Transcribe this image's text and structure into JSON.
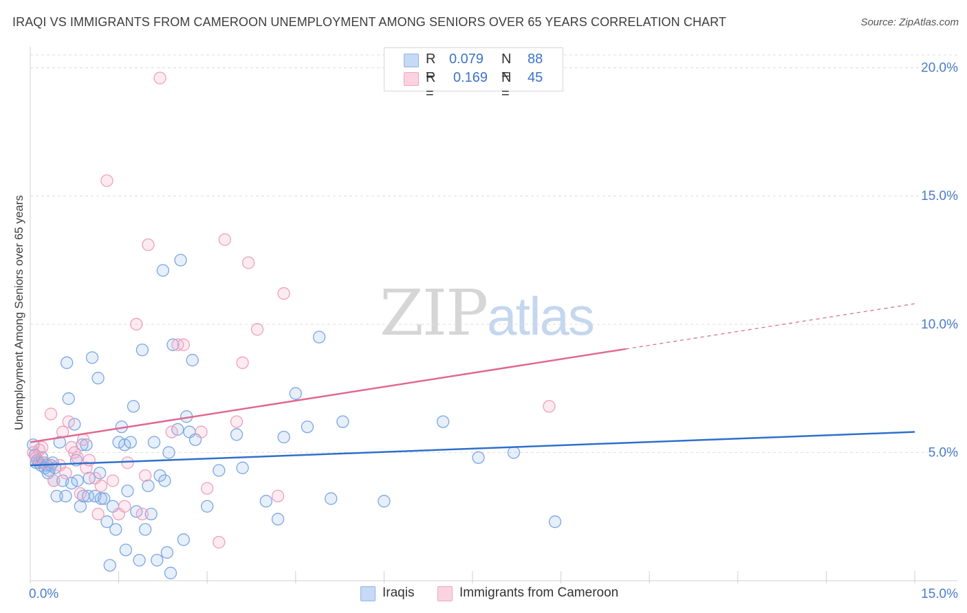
{
  "header": {
    "title": "IRAQI VS IMMIGRANTS FROM CAMEROON UNEMPLOYMENT AMONG SENIORS OVER 65 YEARS CORRELATION CHART",
    "source": "Source: ZipAtlas.com"
  },
  "watermark": {
    "zip": "ZIP",
    "atlas": "atlas"
  },
  "legend": {
    "rows": [
      {
        "r_label": "R =",
        "r_value": "0.079",
        "n_label": "N =",
        "n_value": "88"
      },
      {
        "r_label": "R =",
        "r_value": "0.169",
        "n_label": "N =",
        "n_value": "45"
      }
    ]
  },
  "colors": {
    "iraqis": "#8fb4e8",
    "iraqis_line": "#2e6fcc",
    "cameroon": "#f2a3be",
    "cameroon_line": "#e06890",
    "tick_label": "#4a7cc9",
    "grid": "#dcdcdc"
  },
  "chart_data": {
    "type": "scatter",
    "title": "IRAQI VS IMMIGRANTS FROM CAMEROON UNEMPLOYMENT AMONG SENIORS OVER 65 YEARS CORRELATION CHART",
    "xlabel": "",
    "ylabel": "Unemployment Among Seniors over 65 years",
    "xlim": [
      0,
      15
    ],
    "ylim": [
      0,
      20.5
    ],
    "x_tick_labels": [
      "0.0%",
      "15.0%"
    ],
    "y_ticks": [
      5,
      10,
      15,
      20
    ],
    "y_tick_labels": [
      "5.0%",
      "10.0%",
      "15.0%",
      "20.0%"
    ],
    "grid": true,
    "legend_position": "top-center",
    "series": [
      {
        "name": "Iraqis",
        "color": "#8fb4e8",
        "R": 0.079,
        "N": 88,
        "trend": {
          "x": [
            0,
            15
          ],
          "y": [
            4.5,
            5.8
          ],
          "dashed_from": null
        },
        "points": [
          [
            0.05,
            5.3
          ],
          [
            0.08,
            4.9
          ],
          [
            0.1,
            4.6
          ],
          [
            0.12,
            4.7
          ],
          [
            0.15,
            4.6
          ],
          [
            0.18,
            4.5
          ],
          [
            0.2,
            4.8
          ],
          [
            0.22,
            4.6
          ],
          [
            0.25,
            4.4
          ],
          [
            0.28,
            4.5
          ],
          [
            0.3,
            4.2
          ],
          [
            0.32,
            4.3
          ],
          [
            0.35,
            4.5
          ],
          [
            0.38,
            4.6
          ],
          [
            0.4,
            3.9
          ],
          [
            0.42,
            4.4
          ],
          [
            0.45,
            3.3
          ],
          [
            0.5,
            5.4
          ],
          [
            0.55,
            3.9
          ],
          [
            0.6,
            3.3
          ],
          [
            0.62,
            8.5
          ],
          [
            0.65,
            7.1
          ],
          [
            0.7,
            3.8
          ],
          [
            0.75,
            6.1
          ],
          [
            0.78,
            4.7
          ],
          [
            0.8,
            3.9
          ],
          [
            0.85,
            2.9
          ],
          [
            0.88,
            5.3
          ],
          [
            0.9,
            3.3
          ],
          [
            0.95,
            5.3
          ],
          [
            0.98,
            3.3
          ],
          [
            1.0,
            4.0
          ],
          [
            1.05,
            8.7
          ],
          [
            1.1,
            3.3
          ],
          [
            1.15,
            7.9
          ],
          [
            1.18,
            4.2
          ],
          [
            1.2,
            3.2
          ],
          [
            1.25,
            3.2
          ],
          [
            1.3,
            2.3
          ],
          [
            1.35,
            0.6
          ],
          [
            1.4,
            2.9
          ],
          [
            1.45,
            2.0
          ],
          [
            1.5,
            5.4
          ],
          [
            1.55,
            6.0
          ],
          [
            1.6,
            5.3
          ],
          [
            1.62,
            1.2
          ],
          [
            1.65,
            3.5
          ],
          [
            1.7,
            5.4
          ],
          [
            1.75,
            6.8
          ],
          [
            1.8,
            2.7
          ],
          [
            1.85,
            0.8
          ],
          [
            1.9,
            9.0
          ],
          [
            1.95,
            2.0
          ],
          [
            2.0,
            3.7
          ],
          [
            2.05,
            2.6
          ],
          [
            2.1,
            5.4
          ],
          [
            2.15,
            0.8
          ],
          [
            2.2,
            4.1
          ],
          [
            2.25,
            12.1
          ],
          [
            2.28,
            3.9
          ],
          [
            2.32,
            1.1
          ],
          [
            2.35,
            5.0
          ],
          [
            2.38,
            0.3
          ],
          [
            2.42,
            9.2
          ],
          [
            2.5,
            5.9
          ],
          [
            2.55,
            12.5
          ],
          [
            2.6,
            1.6
          ],
          [
            2.65,
            6.4
          ],
          [
            2.7,
            5.8
          ],
          [
            2.75,
            8.6
          ],
          [
            2.8,
            5.5
          ],
          [
            3.0,
            2.9
          ],
          [
            3.2,
            4.3
          ],
          [
            3.5,
            5.7
          ],
          [
            3.6,
            4.4
          ],
          [
            4.0,
            3.1
          ],
          [
            4.2,
            2.4
          ],
          [
            4.3,
            5.6
          ],
          [
            4.5,
            7.3
          ],
          [
            4.7,
            6.0
          ],
          [
            4.9,
            9.5
          ],
          [
            5.1,
            3.2
          ],
          [
            5.3,
            6.2
          ],
          [
            6.0,
            3.1
          ],
          [
            7.0,
            6.2
          ],
          [
            7.6,
            4.8
          ],
          [
            8.2,
            5.0
          ],
          [
            8.9,
            2.3
          ]
        ]
      },
      {
        "name": "Immigrants from Cameroon",
        "color": "#f2a3be",
        "R": 0.169,
        "N": 45,
        "trend": {
          "x": [
            0,
            15
          ],
          "y": [
            5.4,
            10.8
          ],
          "dashed_from": 10.1
        },
        "points": [
          [
            0.05,
            5.0
          ],
          [
            0.1,
            4.8
          ],
          [
            0.15,
            5.1
          ],
          [
            0.2,
            5.2
          ],
          [
            0.25,
            4.6
          ],
          [
            0.35,
            6.5
          ],
          [
            0.4,
            3.9
          ],
          [
            0.5,
            4.5
          ],
          [
            0.55,
            5.8
          ],
          [
            0.6,
            4.2
          ],
          [
            0.65,
            6.2
          ],
          [
            0.7,
            5.2
          ],
          [
            0.75,
            5.0
          ],
          [
            0.8,
            4.8
          ],
          [
            0.85,
            3.4
          ],
          [
            0.9,
            5.5
          ],
          [
            0.95,
            4.4
          ],
          [
            1.0,
            4.7
          ],
          [
            1.1,
            4.0
          ],
          [
            1.15,
            2.6
          ],
          [
            1.2,
            3.7
          ],
          [
            1.3,
            15.6
          ],
          [
            1.4,
            3.9
          ],
          [
            1.5,
            2.6
          ],
          [
            1.6,
            2.9
          ],
          [
            1.65,
            4.6
          ],
          [
            1.8,
            10.0
          ],
          [
            1.9,
            2.6
          ],
          [
            1.95,
            4.1
          ],
          [
            2.0,
            13.1
          ],
          [
            2.2,
            19.6
          ],
          [
            2.4,
            5.8
          ],
          [
            2.5,
            9.2
          ],
          [
            2.6,
            9.2
          ],
          [
            2.9,
            5.8
          ],
          [
            3.0,
            3.6
          ],
          [
            3.2,
            1.5
          ],
          [
            3.3,
            13.3
          ],
          [
            3.5,
            6.2
          ],
          [
            3.6,
            8.5
          ],
          [
            3.7,
            12.4
          ],
          [
            3.85,
            9.8
          ],
          [
            4.2,
            3.3
          ],
          [
            4.3,
            11.2
          ],
          [
            8.8,
            6.8
          ]
        ]
      },
      {
        "name": "",
        "extra_points_note": "",
        "points": []
      }
    ]
  },
  "bottom_legend": {
    "items": [
      {
        "label": "Iraqis"
      },
      {
        "label": "Immigrants from Cameroon"
      }
    ]
  }
}
